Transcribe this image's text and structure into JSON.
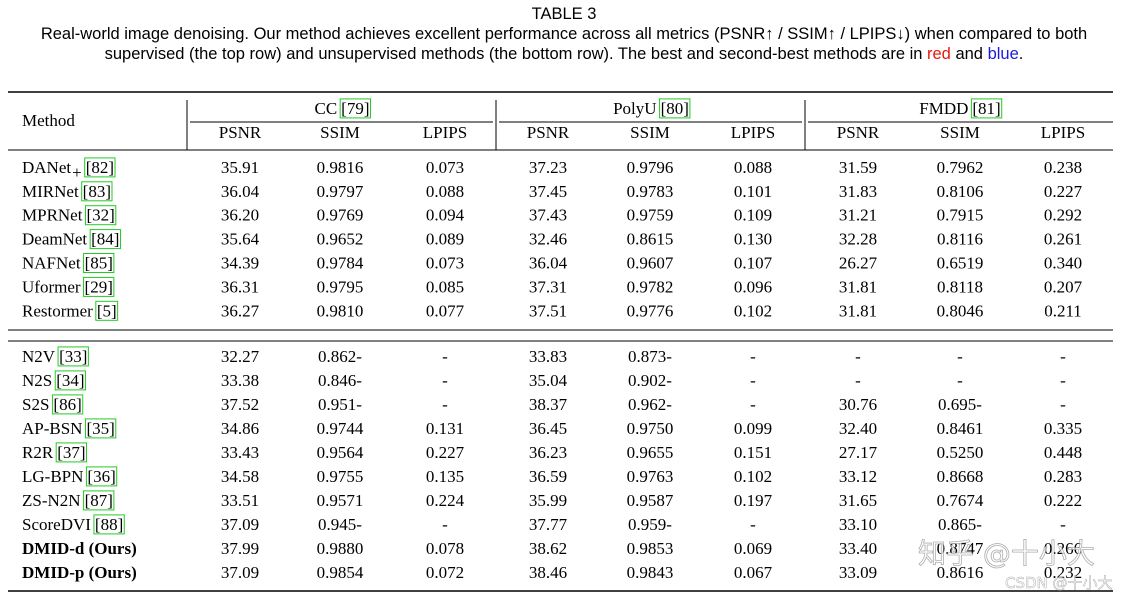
{
  "caption": {
    "label": "TABLE 3",
    "line1": "Real-world image denoising. Our method achieves excellent performance across all metrics (PSNR↑ / SSIM↑ / LPIPS↓) when compared to both",
    "line2": [
      {
        "text": "supervised (the top row) and unsupervised methods (the bottom row). The best and second-best methods are in "
      },
      {
        "text": "red",
        "color": "#e8160c"
      },
      {
        "text": " and "
      },
      {
        "text": "blue",
        "color": "#1a1ad8"
      },
      {
        "text": "."
      }
    ]
  },
  "table": {
    "method_header": "Method",
    "datasets": [
      {
        "name": "CC",
        "ref": "[79]"
      },
      {
        "name": "PolyU",
        "ref": "[80]"
      },
      {
        "name": "FMDD",
        "ref": "[81]"
      }
    ],
    "metrics": [
      "PSNR",
      "SSIM",
      "LPIPS"
    ],
    "groups": [
      [
        {
          "method": "DANet",
          "sub": "+",
          "ref": "[82]",
          "cells": [
            "35.91",
            "0.9816",
            {
              "text": "0.073",
              "color": "#1a1ad8"
            },
            "37.23",
            "0.9796",
            "0.088",
            "31.59",
            "0.7962",
            "0.238"
          ]
        },
        {
          "method": "MIRNet",
          "ref": "[83]",
          "cells": [
            "36.04",
            "0.9797",
            "0.088",
            "37.45",
            "0.9783",
            "0.101",
            "31.83",
            "0.8106",
            "0.227"
          ]
        },
        {
          "method": "MPRNet",
          "ref": "[32]",
          "cells": [
            "36.20",
            "0.9769",
            "0.094",
            "37.43",
            "0.9759",
            "0.109",
            "31.21",
            "0.7915",
            "0.292"
          ]
        },
        {
          "method": "DeamNet",
          "ref": "[84]",
          "cells": [
            "35.64",
            "0.9652",
            "0.089",
            "32.46",
            "0.8615",
            "0.130",
            "32.28",
            "0.8116",
            "0.261"
          ]
        },
        {
          "method": "NAFNet",
          "ref": "[85]",
          "cells": [
            "34.39",
            "0.9784",
            {
              "text": "0.073",
              "color": "#1a1ad8"
            },
            "36.04",
            "0.9607",
            "0.107",
            "26.27",
            "0.6519",
            "0.340"
          ]
        },
        {
          "method": "Uformer",
          "ref": "[29]",
          "cells": [
            "36.31",
            "0.9795",
            "0.085",
            "37.31",
            "0.9782",
            "0.096",
            "31.81",
            "0.8118",
            {
              "text": "0.207",
              "color": "#e8160c"
            }
          ]
        },
        {
          "method": "Restormer",
          "ref": "[5]",
          "cells": [
            "36.27",
            "0.9810",
            "0.077",
            "37.51",
            "0.9776",
            "0.102",
            "31.81",
            "0.8046",
            {
              "text": "0.211",
              "color": "#1a1ad8"
            }
          ]
        }
      ],
      [
        {
          "method": "N2V",
          "ref": "[33]",
          "cells": [
            "32.27",
            "0.862-",
            "-",
            "33.83",
            "0.873-",
            "-",
            "-",
            "-",
            "-"
          ]
        },
        {
          "method": "N2S",
          "ref": "[34]",
          "cells": [
            "33.38",
            "0.846-",
            "-",
            "35.04",
            "0.902-",
            "-",
            "-",
            "-",
            "-"
          ]
        },
        {
          "method": "S2S",
          "ref": "[86]",
          "cells": [
            {
              "text": "37.52",
              "color": "#1a1ad8"
            },
            "0.951-",
            "-",
            "38.37",
            "0.962-",
            "-",
            "30.76",
            "0.695-",
            "-"
          ]
        },
        {
          "method": "AP-BSN",
          "ref": "[35]",
          "cells": [
            "34.86",
            "0.9744",
            "0.131",
            "36.45",
            "0.9750",
            "0.099",
            "32.40",
            "0.8461",
            "0.335"
          ]
        },
        {
          "method": "R2R",
          "ref": "[37]",
          "cells": [
            "33.43",
            "0.9564",
            "0.227",
            "36.23",
            "0.9655",
            "0.151",
            "27.17",
            "0.5250",
            "0.448"
          ]
        },
        {
          "method": "LG-BPN",
          "ref": "[36]",
          "cells": [
            "34.58",
            "0.9755",
            "0.135",
            "36.59",
            "0.9763",
            "0.102",
            {
              "text": "33.12",
              "color": "#1a1ad8"
            },
            {
              "text": "0.8668",
              "color": "#1a1ad8"
            },
            "0.283"
          ]
        },
        {
          "method": "ZS-N2N",
          "ref": "[87]",
          "cells": [
            "33.51",
            "0.9571",
            "0.224",
            "35.99",
            "0.9587",
            "0.197",
            "31.65",
            "0.7674",
            "0.222"
          ]
        },
        {
          "method": "ScoreDVI",
          "ref": "[88]",
          "cells": [
            "37.09",
            "0.945-",
            "-",
            "37.77",
            "0.959-",
            "-",
            "33.10",
            "0.865-",
            "-"
          ]
        },
        {
          "method": "DMID-d (Ours)",
          "bold": true,
          "cells": [
            {
              "text": "37.99",
              "color": "#e8160c"
            },
            {
              "text": "0.9880",
              "color": "#e8160c"
            },
            "0.078",
            {
              "text": "38.62",
              "color": "#e8160c"
            },
            {
              "text": "0.9853",
              "color": "#e8160c"
            },
            {
              "text": "0.069",
              "color": "#1a1ad8"
            },
            {
              "text": "33.40",
              "color": "#e8160c"
            },
            {
              "text": "0.8747",
              "color": "#e8160c"
            },
            "0.266"
          ]
        },
        {
          "method": "DMID-p (Ours)",
          "bold": true,
          "cells": [
            "37.09",
            {
              "text": "0.9854",
              "color": "#1a1ad8"
            },
            {
              "text": "0.072",
              "color": "#e8160c"
            },
            {
              "text": "38.46",
              "color": "#1a1ad8"
            },
            {
              "text": "0.9843",
              "color": "#1a1ad8"
            },
            {
              "text": "0.067",
              "color": "#e8160c"
            },
            "33.09",
            "0.8616",
            "0.232"
          ]
        }
      ]
    ]
  },
  "watermarks": [
    "知乎 @十小大",
    "CSDN @十小大"
  ]
}
